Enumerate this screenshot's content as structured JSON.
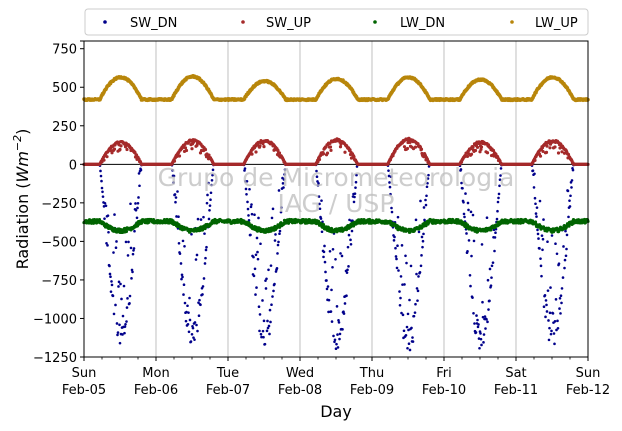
{
  "chart_data": {
    "type": "scatter",
    "title": "",
    "xlabel": "Day",
    "ylabel_main": "Radiation (",
    "ylabel_unit_base": "Wm",
    "ylabel_unit_exp": "−2",
    "ylabel_close": ")",
    "ylim": [
      -1250,
      800
    ],
    "yticks": [
      800,
      750,
      500,
      250,
      0,
      -250,
      -500,
      -750,
      -1000,
      -1250
    ],
    "ytick_labels": [
      "",
      "750",
      "500",
      "250",
      "0",
      "−250",
      "−500",
      "−750",
      "−1000",
      "−1250"
    ],
    "xlim": [
      "2017-02-05",
      "2017-02-12"
    ],
    "xticks": [
      {
        "day": "Sun",
        "date": "Feb-05"
      },
      {
        "day": "Mon",
        "date": "Feb-06"
      },
      {
        "day": "Tue",
        "date": "Feb-07"
      },
      {
        "day": "Wed",
        "date": "Feb-08"
      },
      {
        "day": "Thu",
        "date": "Feb-09"
      },
      {
        "day": "Fri",
        "date": "Feb-10"
      },
      {
        "day": "Sat",
        "date": "Feb-11"
      },
      {
        "day": "Sun",
        "date": "Feb-12"
      }
    ],
    "grid": "vertical",
    "legend": {
      "placement": "top-outside",
      "columns": 4
    },
    "watermark": [
      "Grupo de Micrometeorologia",
      "IAG / USP"
    ],
    "series": [
      {
        "name": "SW_DN",
        "color": "#00008b",
        "pattern": {
          "night": 0,
          "noon_peak": [
            -1170,
            -1180,
            -1190,
            -1200,
            -1240,
            -1210,
            -1200
          ]
        }
      },
      {
        "name": "SW_UP",
        "color": "#a52a2a",
        "pattern": {
          "night": 0,
          "noon_peak": [
            150,
            160,
            160,
            165,
            170,
            150,
            160
          ]
        }
      },
      {
        "name": "LW_DN",
        "color": "#006400",
        "pattern": {
          "night": -370,
          "day": -430
        }
      },
      {
        "name": "LW_UP",
        "color": "#b8860b",
        "pattern": {
          "night": 420,
          "noon_peak": [
            565,
            570,
            540,
            555,
            565,
            550,
            565
          ]
        }
      }
    ]
  }
}
